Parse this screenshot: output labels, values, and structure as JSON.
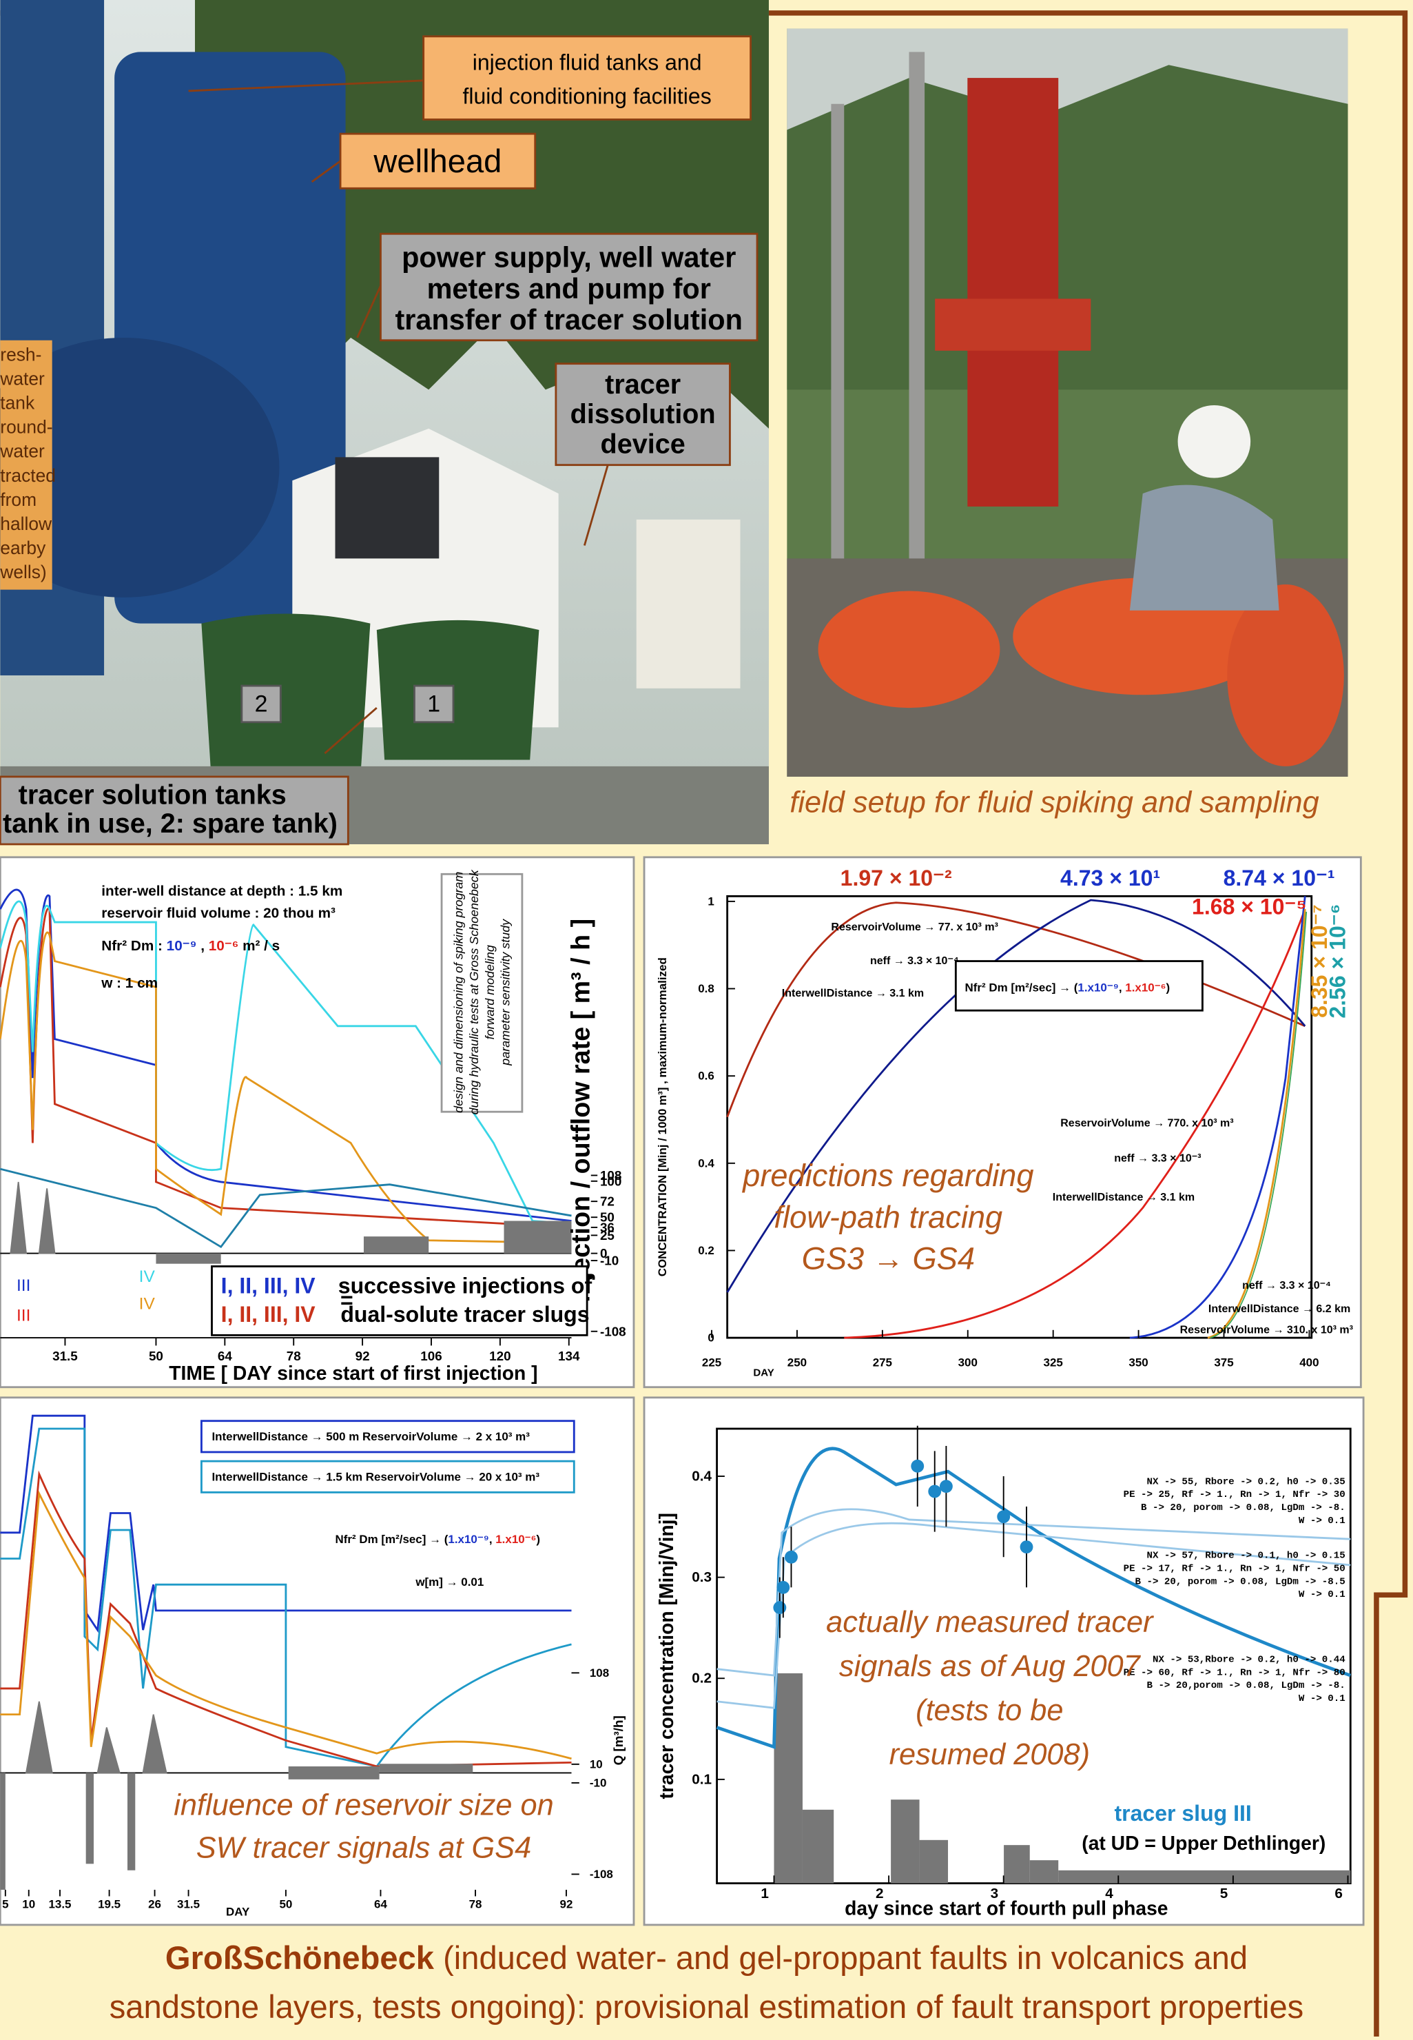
{
  "photo_left": {
    "tanks_label": [
      "injection fluid tanks and",
      "fluid conditioning facilities"
    ],
    "wellhead_label": "wellhead",
    "power_label": [
      "power supply, well water",
      "meters and pump for",
      "transfer of tracer solution"
    ],
    "dissolution_label": [
      "tracer",
      "dissolution",
      "device"
    ],
    "freshwater_label": [
      "resh-",
      "water",
      "tank",
      "round-",
      "water",
      "tracted",
      "from",
      "hallow",
      "earby",
      "wells)"
    ],
    "tank_numbers": [
      "2",
      "1"
    ],
    "solution_label": [
      "tracer solution tanks",
      "tank in use, 2: spare tank)"
    ]
  },
  "photo_right": {
    "caption": "field setup for fluid spiking and sampling"
  },
  "spiking_chart": {
    "header": [
      "inter-well distance at depth : 1.5 km",
      "reservoir fluid volume : 20 thou m³"
    ],
    "diffusion": {
      "label": "Nfr² Dm : ",
      "low": "10⁻⁹",
      "sep": " , ",
      "high": "10⁻⁶",
      "unit": " m² / s"
    },
    "aperture": "w : 1 cm",
    "note": [
      "design and dimensioning of spiking program",
      "during hydraulic tests at Gross Schoenebeck",
      "forward modeling",
      "parameter sensitivity study"
    ],
    "right_axis_label": "injection / outflow rate  [ m³ / h ]",
    "right_ticks": [
      108,
      100,
      72,
      50,
      36,
      25,
      0,
      -10,
      -108
    ],
    "x_ticks": [
      31.5,
      50,
      64,
      78,
      92,
      106,
      120,
      134
    ],
    "x_label": "TIME [ DAY since start of first injection ]",
    "slug_labels": [
      "III",
      "III",
      "IV",
      "IV"
    ],
    "legend": {
      "numerals": [
        "I, II, III, IV",
        "I, II, III, IV"
      ],
      "equals": "=",
      "text": [
        "successive injections of",
        "dual-solute tracer slugs"
      ]
    }
  },
  "prediction_chart": {
    "top_labels": [
      "1.97 × 10⁻²",
      "4.73 × 10¹",
      "8.74 × 10⁻¹",
      "1.68 × 10⁻⁵"
    ],
    "side_labels": [
      "2.56 × 10⁻⁶",
      "8.35 × 10⁻⁷"
    ],
    "y_label": "CONCENTRATION [Minj / 1000 m³] ,  maximum-normalized",
    "y_ticks": [
      0,
      0.2,
      0.4,
      0.6,
      0.8,
      1
    ],
    "x_ticks": [
      225,
      250,
      275,
      300,
      325,
      350,
      375,
      400
    ],
    "x_label": "DAY",
    "annotations": [
      "ReservoirVolume → 77. x 10³ m³",
      "neff → 3.3 × 10⁻⁴",
      "InterwellDistance → 3.1 km",
      "ReservoirVolume → 770. x 10³ m³",
      "neff → 3.3 × 10⁻³",
      "InterwellDistance → 3.1 km",
      "neff → 3.3 × 10⁻⁴",
      "InterwellDistance → 6.2 km",
      "ReservoirVolume → 310. x 10³ m³"
    ],
    "formula": {
      "text": "Nfr² Dm [m²/sec] → (",
      "low": "1.x10⁻⁹",
      "sep": ", ",
      "high": "1.x10⁻⁶",
      "end": ")"
    },
    "overlay": [
      "predictions regarding",
      "flow-path tracing",
      "GS3 → GS4"
    ]
  },
  "reservoir_chart": {
    "legend": [
      "InterwellDistance → 500 m    ReservoirVolume → 2 x 10³ m³",
      "InterwellDistance → 1.5 km    ReservoirVolume → 20 x 10³ m³"
    ],
    "formula": {
      "text": "Nfr² Dm [m²/sec] → (",
      "low": "1.x10⁻⁹",
      "sep": ", ",
      "high": "1.x10⁻⁶",
      "end": ")"
    },
    "aperture": "w[m] → 0.01",
    "right_ticks": [
      108,
      10,
      -10,
      -108
    ],
    "right_label": "Q [m³/h]",
    "x_ticks": [
      5,
      10,
      13.5,
      19.5,
      26,
      31.5,
      50,
      64,
      78,
      92
    ],
    "x_label": "DAY",
    "overlay": [
      "influence of reservoir size on",
      "SW tracer signals at GS4"
    ]
  },
  "measured_chart": {
    "y_ticks": [
      0.1,
      0.2,
      0.3,
      0.4
    ],
    "x_ticks": [
      1,
      2,
      3,
      4,
      5,
      6
    ],
    "y_label": "tracer concentration [Minj/Vinj]",
    "x_label": "day since start of fourth pull phase",
    "params": [
      [
        "NX -> 55, Rbore -> 0.2, h0 -> 0.35",
        "PE -> 25, Rf -> 1., Rn -> 1, Nfr -> 30",
        "B -> 20, porom -> 0.08, LgDm -> -8.",
        "W -> 0.1"
      ],
      [
        "NX -> 57, Rbore -> 0.1, h0 -> 0.15",
        "PE -> 17, Rf -> 1., Rn -> 1, Nfr -> 50",
        "B -> 20, porom -> 0.08, LgDm -> -8.5",
        "W -> 0.1"
      ],
      [
        "NX -> 53,Rbore -> 0.2, h0 -> 0.44",
        "PE -> 60, Rf -> 1., Rn -> 1, Nfr -> 80",
        "B -> 20,porom -> 0.08, LgDm -> -8.",
        "W -> 0.1"
      ]
    ],
    "slug": [
      "tracer slug III",
      "(at UD = Upper Dethlinger)"
    ],
    "overlay": [
      "actually measured tracer",
      "signals as of Aug 2007",
      "(tests to be",
      "resumed 2008)"
    ],
    "points": {
      "x": [
        1.05,
        1.08,
        1.15,
        2.25,
        2.4,
        2.5,
        3,
        3.2
      ],
      "y": [
        0.27,
        0.29,
        0.32,
        0.41,
        0.385,
        0.39,
        0.36,
        0.33
      ],
      "err": [
        0.03,
        0.03,
        0.03,
        0.04,
        0.04,
        0.04,
        0.04,
        0.04
      ]
    }
  },
  "footer": {
    "title": "GroßSchönebeck",
    "lines": [
      " (induced water- and gel-proppant faults in volcanics and",
      "sandstone layers, tests ongoing): provisional estimation of fault transport properties"
    ]
  }
}
